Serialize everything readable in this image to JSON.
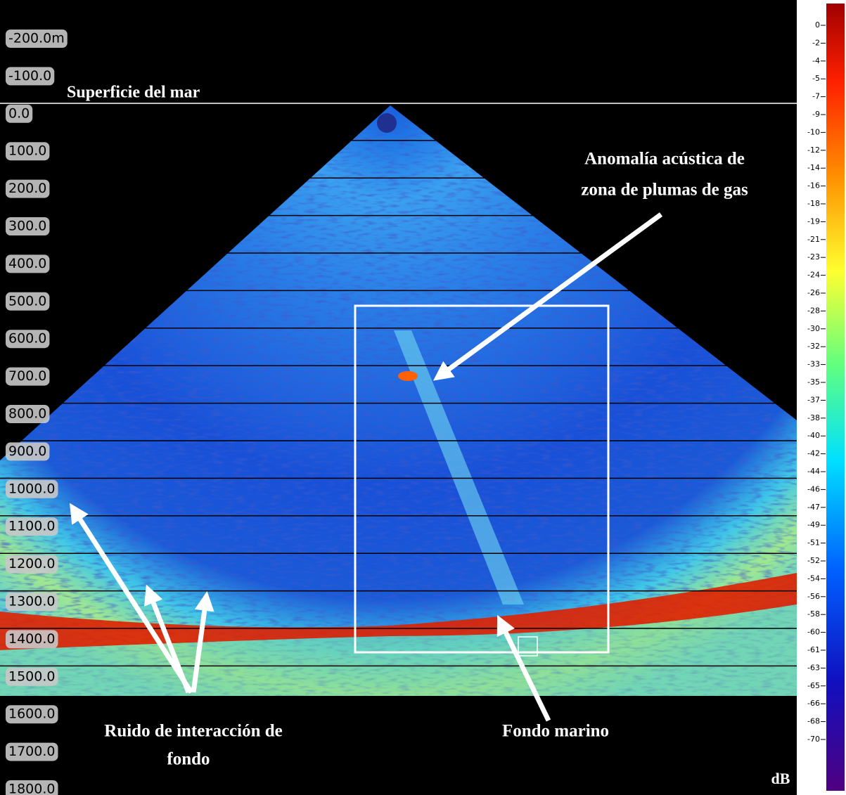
{
  "surface_label": "Superficie del mar",
  "depth_labels": [
    "-200.0m",
    "-100.0",
    "0.0",
    "100.0",
    "200.0",
    "300.0",
    "400.0",
    "500.0",
    "600.0",
    "700.0",
    "800.0",
    "900.0",
    "1000.0",
    "1100.0",
    "1200.0",
    "1300.0",
    "1400.0",
    "1500.0",
    "1600.0",
    "1700.0",
    "1800.0"
  ],
  "annotations": {
    "gas_plume": [
      "Anomalía acústica de",
      "zona de plumas de gas"
    ],
    "seafloor": "Fondo marino",
    "bottom_noise": [
      "Ruido de interacción de",
      "fondo"
    ]
  },
  "colorbar": {
    "labels": [
      "0",
      "-2",
      "-4",
      "-5",
      "-7",
      "-9",
      "-10",
      "-12",
      "-14",
      "-16",
      "-18",
      "-19",
      "-21",
      "-23",
      "-24",
      "-26",
      "-28",
      "-30",
      "-32",
      "-33",
      "-35",
      "-37",
      "-38",
      "-40",
      "-42",
      "-44",
      "-46",
      "-47",
      "-49",
      "-51",
      "-52",
      "-54",
      "-56",
      "-58",
      "-60",
      "-61",
      "-63",
      "-65",
      "-66",
      "-68",
      "-70"
    ],
    "unit": "dB"
  }
}
